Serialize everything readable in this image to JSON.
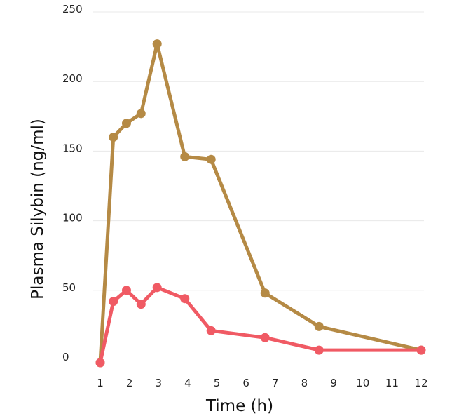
{
  "chart_data": {
    "type": "line",
    "title": "",
    "xlabel": "Time (h)",
    "ylabel": "Plasma Silybin (ng/ml)",
    "xlim": [
      1,
      12
    ],
    "ylim": [
      0,
      250
    ],
    "x_ticks": [
      1,
      2,
      3,
      4,
      5,
      6,
      7,
      8,
      9,
      10,
      11,
      12
    ],
    "y_ticks": [
      0,
      50,
      100,
      150,
      200,
      250
    ],
    "grid": "horizontal",
    "legend": "none",
    "series": [
      {
        "color": "#b58a45",
        "points": [
          [
            1.0,
            -2
          ],
          [
            1.45,
            160
          ],
          [
            1.9,
            170
          ],
          [
            2.4,
            177
          ],
          [
            2.95,
            227
          ],
          [
            3.9,
            146
          ],
          [
            4.8,
            144
          ],
          [
            6.65,
            48
          ],
          [
            8.5,
            24
          ],
          [
            12.0,
            7
          ]
        ]
      },
      {
        "color": "#f05a64",
        "points": [
          [
            1.0,
            -2
          ],
          [
            1.45,
            42
          ],
          [
            1.9,
            50
          ],
          [
            2.4,
            40
          ],
          [
            2.95,
            52
          ],
          [
            3.9,
            44
          ],
          [
            4.8,
            21
          ],
          [
            6.65,
            16
          ],
          [
            8.5,
            7
          ],
          [
            12.0,
            7
          ]
        ]
      }
    ]
  }
}
